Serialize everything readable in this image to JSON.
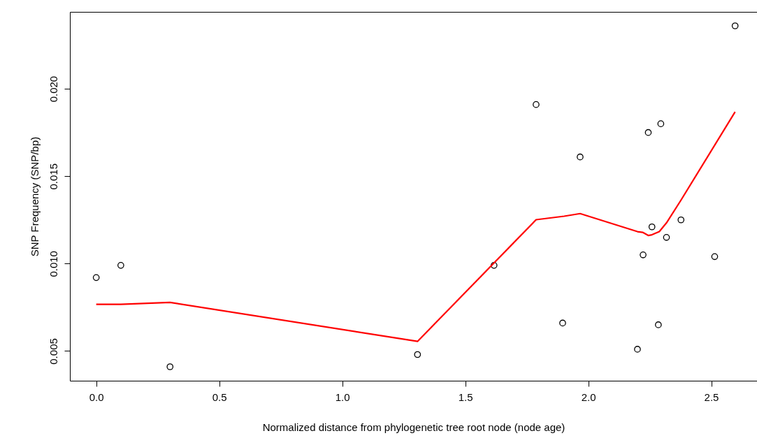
{
  "chart_data": {
    "type": "scatter",
    "xlabel": "Normalized distance from phylogenetic tree root node (node age)",
    "ylabel": "SNP Frequency (SNP/bp)",
    "xlim": [
      -0.107,
      2.686
    ],
    "ylim": [
      0.0033,
      0.0244
    ],
    "xticks": [
      {
        "value": 0,
        "label": "0.0"
      },
      0.5,
      {
        "value": 1,
        "label": "1.0"
      },
      1.5,
      {
        "value": 2,
        "label": "2.0"
      },
      2.5
    ],
    "yticks": [
      0.005,
      {
        "value": 0.01,
        "label": "0.010"
      },
      0.015,
      {
        "value": 0.02,
        "label": "0.020"
      }
    ],
    "grid": false,
    "marker": "circle",
    "series": [
      {
        "color": "#000000",
        "x": [
          0,
          0.1,
          0.3,
          1.306,
          1.617,
          1.788,
          1.896,
          1.967,
          2.2,
          2.223,
          2.244,
          2.259,
          2.285,
          2.295,
          2.318,
          2.377,
          2.514,
          2.597
        ],
        "values": [
          0.0092,
          0.0099,
          0.0041,
          0.0048,
          0.0099,
          0.0191,
          0.0066,
          0.0161,
          0.0051,
          0.0105,
          0.0175,
          0.0121,
          0.0065,
          0.018,
          0.0115,
          0.0125,
          0.0104,
          0.0236
        ]
      },
      {
        "type": "line",
        "color": "#ff0000",
        "marker": "none",
        "line_style": "solid",
        "x": [
          0,
          0.1,
          0.3,
          1.306,
          1.788,
          1.902,
          1.967,
          2.2,
          2.221,
          2.244,
          2.259,
          2.289,
          2.318,
          2.377,
          2.597
        ],
        "values": [
          0.00767,
          0.00767,
          0.00778,
          0.00555,
          0.01251,
          0.01271,
          0.01286,
          0.01183,
          0.01179,
          0.01161,
          0.01165,
          0.01183,
          0.01233,
          0.01363,
          0.01868
        ]
      }
    ]
  }
}
